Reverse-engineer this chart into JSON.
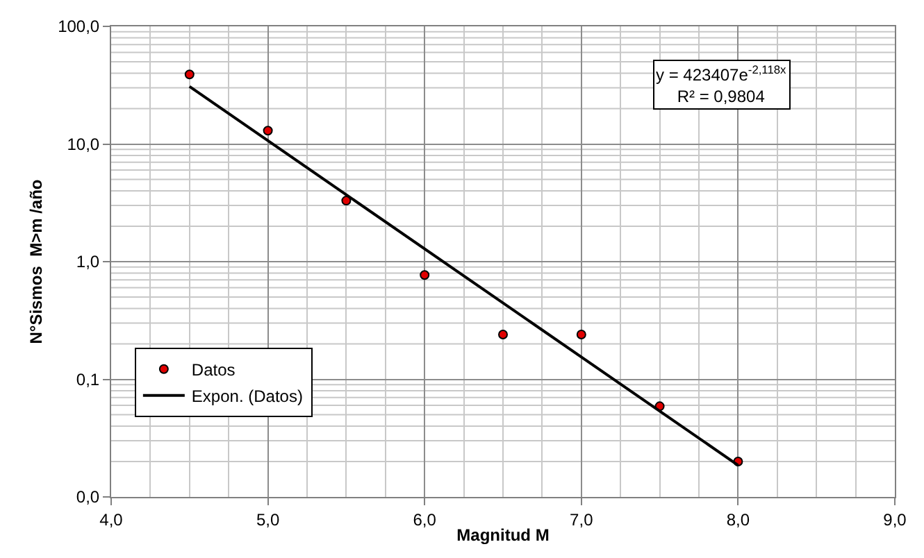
{
  "chart_data": {
    "type": "scatter",
    "xlabel": "Magnitud M",
    "ylabel": "N°Sismos  M>m /año",
    "xlim": [
      4.0,
      9.0
    ],
    "ylim": [
      0.01,
      100
    ],
    "log": "y",
    "grid": true,
    "legend": "bottom left",
    "xticks": [
      {
        "value": 4,
        "label": "4,0"
      },
      {
        "value": 5,
        "label": "5,0"
      },
      {
        "value": 6,
        "label": "6,0"
      },
      {
        "value": 7,
        "label": "7,0"
      },
      {
        "value": 8,
        "label": "8,0"
      },
      {
        "value": 9,
        "label": "9,0"
      }
    ],
    "yticks": [
      {
        "value": 0.01,
        "label": "0,0"
      },
      {
        "value": 0.1,
        "label": "0,1"
      },
      {
        "value": 1,
        "label": "1,0"
      },
      {
        "value": 10,
        "label": "10,0"
      },
      {
        "value": 100,
        "label": "100,0"
      }
    ],
    "series": [
      {
        "name": "Datos",
        "marker": "circle",
        "color": "#e00000",
        "x": [
          4.5,
          5.0,
          5.5,
          6.0,
          6.5,
          7.0,
          7.5,
          8.0
        ],
        "values": [
          39,
          13,
          3.3,
          0.77,
          0.24,
          0.24,
          0.059,
          0.02
        ]
      },
      {
        "name": "Expon. (Datos)",
        "type": "line",
        "line_style": "solid",
        "color": "#000000",
        "x": [
          4.5,
          8.0
        ],
        "values": [
          30.8,
          0.0186
        ]
      }
    ],
    "annotations": [
      "y = 423407e$^{-2,118x}$\nR² = 0,9804"
    ]
  }
}
